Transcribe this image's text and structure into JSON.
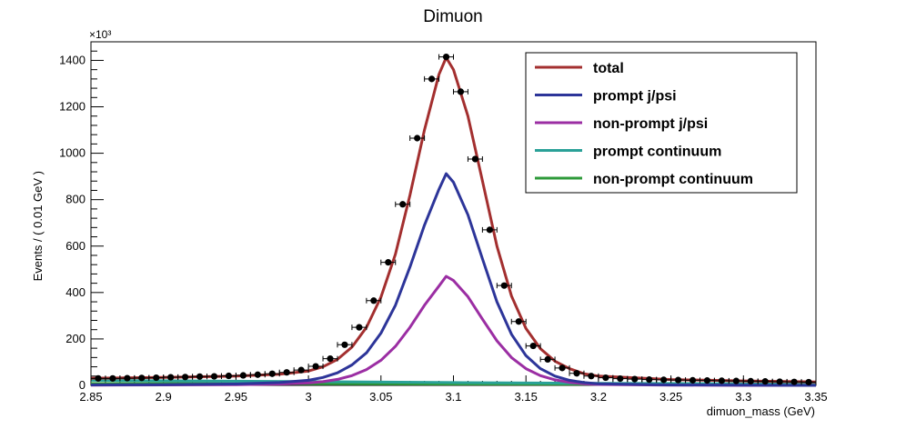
{
  "chart_data": {
    "type": "line",
    "title": "Dimuon",
    "xlabel": "dimuon_mass (GeV)",
    "ylabel": "Events / ( 0.01 GeV )",
    "y_multiplier": "×10³",
    "xlim": [
      2.85,
      3.35
    ],
    "ylim": [
      0,
      1480
    ],
    "x_ticks": [
      "2.85",
      "2.9",
      "2.95",
      "3",
      "3.05",
      "3.1",
      "3.15",
      "3.2",
      "3.25",
      "3.3",
      "3.35"
    ],
    "y_ticks": [
      "0",
      "200",
      "400",
      "600",
      "800",
      "1000",
      "1200",
      "1400"
    ],
    "grid": false,
    "legend_position": "top-right",
    "data_points": {
      "x": [
        2.855,
        2.865,
        2.875,
        2.885,
        2.895,
        2.905,
        2.915,
        2.925,
        2.935,
        2.945,
        2.955,
        2.965,
        2.975,
        2.985,
        2.995,
        3.005,
        3.015,
        3.025,
        3.035,
        3.045,
        3.055,
        3.065,
        3.075,
        3.085,
        3.095,
        3.105,
        3.115,
        3.125,
        3.135,
        3.145,
        3.155,
        3.165,
        3.175,
        3.185,
        3.195,
        3.205,
        3.215,
        3.225,
        3.235,
        3.245,
        3.255,
        3.265,
        3.275,
        3.285,
        3.295,
        3.305,
        3.315,
        3.325,
        3.335,
        3.345
      ],
      "y": [
        30,
        30,
        31,
        32,
        33,
        35,
        36,
        38,
        39,
        41,
        43,
        46,
        50,
        56,
        66,
        82,
        115,
        175,
        250,
        365,
        530,
        780,
        1065,
        1320,
        1415,
        1265,
        975,
        670,
        430,
        275,
        170,
        112,
        75,
        52,
        40,
        33,
        29,
        27,
        25,
        24,
        23,
        22,
        21,
        20,
        19,
        18,
        17,
        16,
        15,
        14
      ],
      "x_error": 0.005
    },
    "series": [
      {
        "name": "total",
        "color": "#a32f2f",
        "x": [
          2.85,
          2.9,
          2.95,
          2.98,
          3.0,
          3.01,
          3.02,
          3.03,
          3.04,
          3.05,
          3.06,
          3.07,
          3.08,
          3.09,
          3.095,
          3.1,
          3.11,
          3.12,
          3.13,
          3.14,
          3.15,
          3.16,
          3.17,
          3.18,
          3.19,
          3.2,
          3.25,
          3.3,
          3.35
        ],
        "values": [
          31,
          34,
          40,
          48,
          62,
          80,
          112,
          165,
          250,
          380,
          565,
          820,
          1100,
          1340,
          1412,
          1360,
          1160,
          880,
          600,
          385,
          245,
          158,
          104,
          72,
          50,
          40,
          25,
          19,
          15
        ]
      },
      {
        "name": "prompt j/psi",
        "color": "#2d3599",
        "x": [
          2.85,
          2.9,
          2.95,
          2.98,
          3.0,
          3.01,
          3.02,
          3.03,
          3.04,
          3.05,
          3.06,
          3.07,
          3.08,
          3.09,
          3.095,
          3.1,
          3.11,
          3.12,
          3.13,
          3.14,
          3.15,
          3.16,
          3.17,
          3.18,
          3.19,
          3.2,
          3.25,
          3.3,
          3.35
        ],
        "values": [
          2,
          3,
          6,
          12,
          22,
          34,
          54,
          88,
          140,
          225,
          345,
          510,
          690,
          845,
          912,
          875,
          735,
          545,
          360,
          220,
          128,
          72,
          40,
          22,
          12,
          7,
          2,
          1,
          0
        ]
      },
      {
        "name": "non-prompt j/psi",
        "color": "#9b2ea3",
        "x": [
          2.85,
          2.9,
          2.95,
          2.98,
          3.0,
          3.01,
          3.02,
          3.03,
          3.04,
          3.05,
          3.06,
          3.07,
          3.08,
          3.09,
          3.095,
          3.1,
          3.11,
          3.12,
          3.13,
          3.14,
          3.15,
          3.16,
          3.17,
          3.18,
          3.19,
          3.2,
          3.25,
          3.3,
          3.35
        ],
        "values": [
          1,
          2,
          3,
          6,
          10,
          16,
          26,
          42,
          68,
          108,
          168,
          250,
          345,
          428,
          470,
          452,
          382,
          285,
          192,
          120,
          72,
          42,
          24,
          13,
          7,
          4,
          1,
          0,
          0
        ]
      },
      {
        "name": "prompt continuum",
        "color": "#2aa198",
        "x": [
          2.85,
          3.0,
          3.1,
          3.2,
          3.35
        ],
        "values": [
          22,
          16,
          12,
          9,
          6
        ]
      },
      {
        "name": "non-prompt continuum",
        "color": "#2e9a3a",
        "x": [
          2.85,
          3.0,
          3.1,
          3.2,
          3.35
        ],
        "values": [
          8,
          7,
          6,
          5,
          4
        ]
      }
    ]
  }
}
